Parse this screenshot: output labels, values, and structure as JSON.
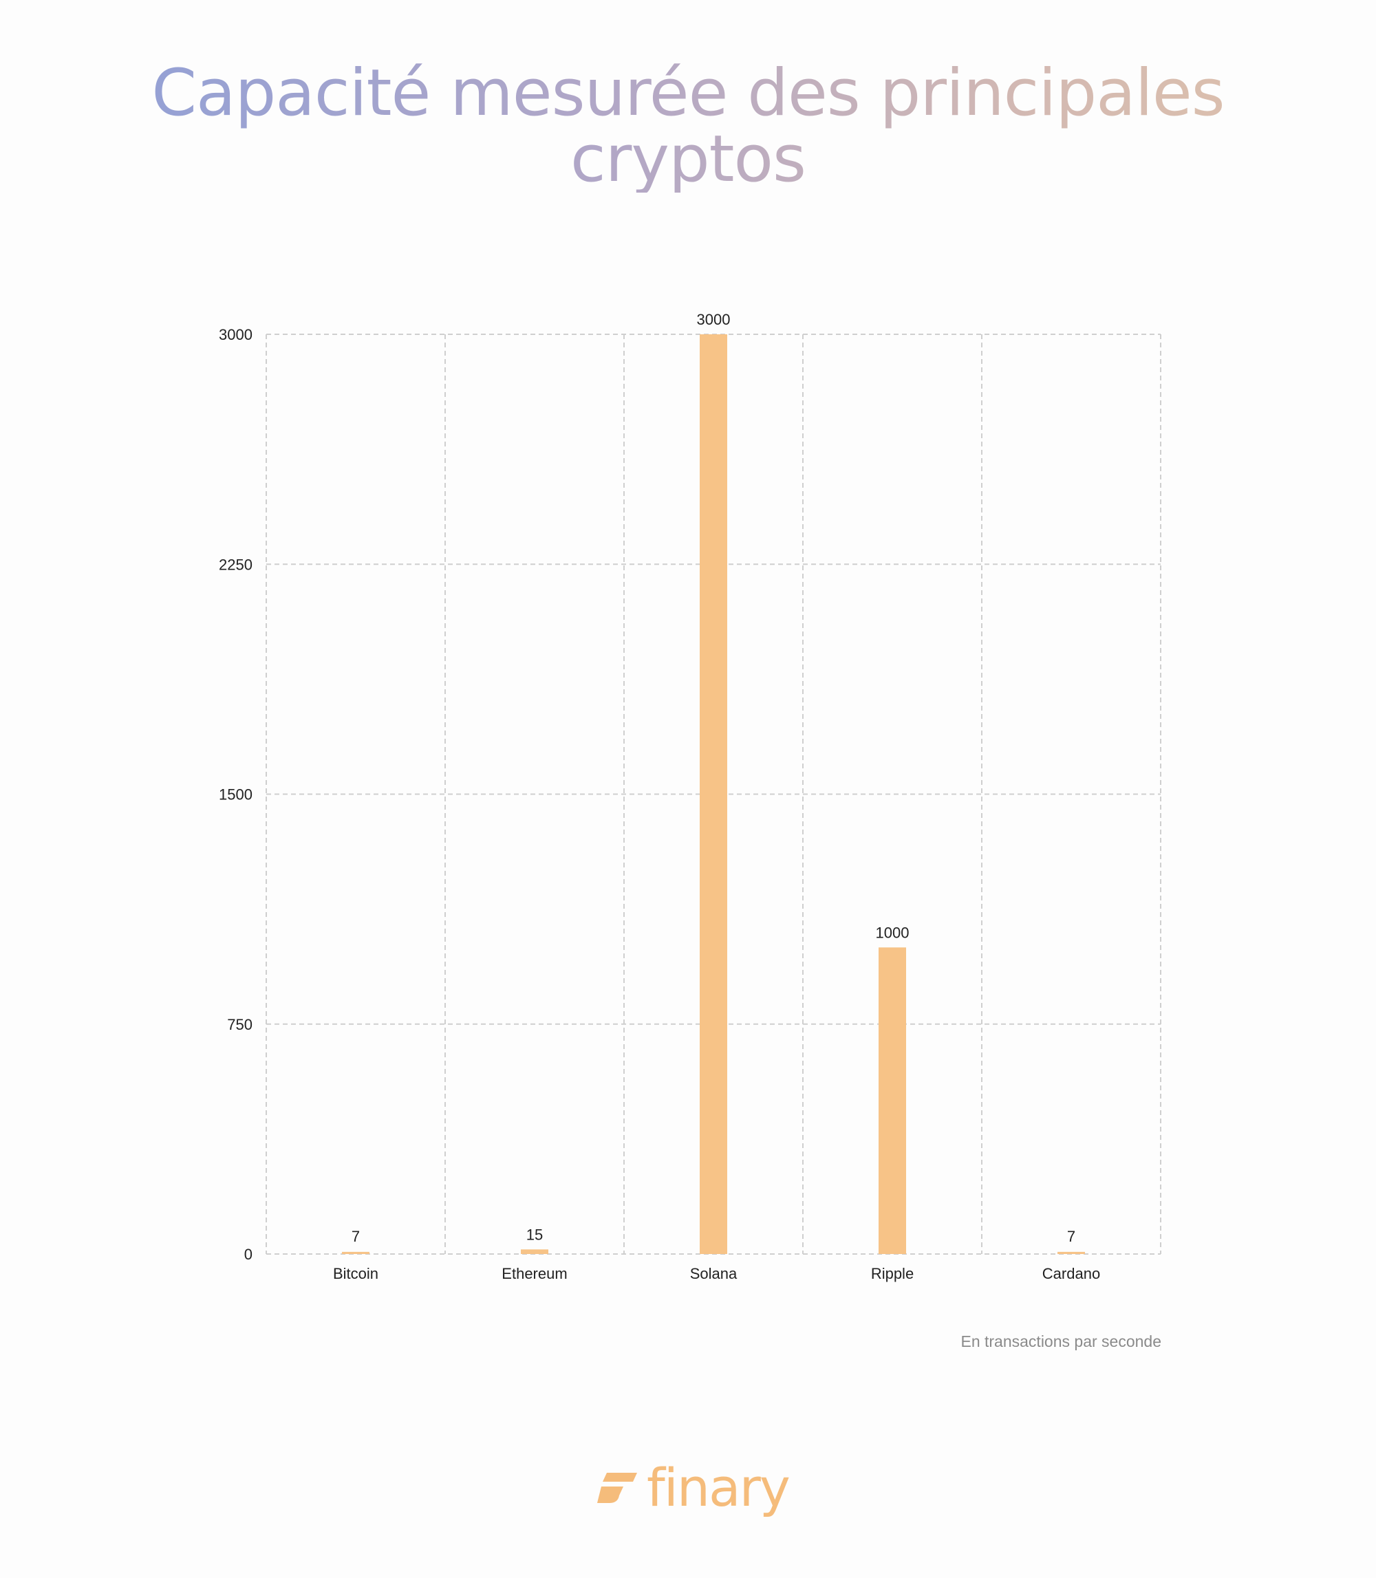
{
  "title_lines": [
    "Capacité mesurée des principales",
    "cryptos"
  ],
  "unit_note": "En transactions par seconde",
  "brand": {
    "name": "finary",
    "logo_icon": "finary-logo-icon",
    "color": "#f5bc7b"
  },
  "colors": {
    "bar": "#f7c387",
    "grid": "#cfcfcf",
    "tick_text": "#222222",
    "title_gradient": [
      "#8c9fd9",
      "#b2a7c6",
      "#d3b9b2",
      "#e0c3aa"
    ]
  },
  "chart_data": {
    "type": "bar",
    "title": "Capacité mesurée des principales cryptos",
    "xlabel": "",
    "ylabel": "",
    "categories": [
      "Bitcoin",
      "Ethereum",
      "Solana",
      "Ripple",
      "Cardano"
    ],
    "values": [
      7,
      15,
      3000,
      1000,
      7
    ],
    "data_labels": [
      "7",
      "15",
      "3000",
      "1000",
      "7"
    ],
    "ylim": [
      0,
      3000
    ],
    "yticks": [
      0,
      750,
      1500,
      2250,
      3000
    ],
    "ytick_labels": [
      "0",
      "750",
      "1500",
      "2250",
      "3000"
    ],
    "grid": true,
    "grid_style": "dashed",
    "legend": "none"
  }
}
